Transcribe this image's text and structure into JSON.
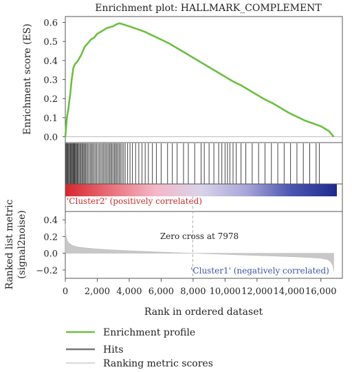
{
  "chart_data": {
    "type": "line",
    "title": "Enrichment plot: HALLMARK_COMPLEMENT",
    "xlabel": "Rank in ordered dataset",
    "xlim": [
      0,
      17000
    ],
    "x_ticks": [
      "0",
      "2,000",
      "4,000",
      "6,000",
      "8,000",
      "10,000",
      "12,000",
      "14,000",
      "16,000"
    ],
    "x_tick_values": [
      0,
      2000,
      4000,
      6000,
      8000,
      10000,
      12000,
      14000,
      16000
    ],
    "es_panel": {
      "ylabel": "Enrichment score (ES)",
      "ylim": [
        -0.02,
        0.62
      ],
      "y_ticks": [
        "0.0",
        "0.1",
        "0.2",
        "0.3",
        "0.4",
        "0.5",
        "0.6"
      ],
      "y_tick_values": [
        0,
        0.1,
        0.2,
        0.3,
        0.4,
        0.5,
        0.6
      ],
      "series": [
        {
          "name": "Enrichment profile",
          "color": "#6abf40",
          "x": [
            0,
            100,
            200,
            300,
            400,
            500,
            600,
            700,
            800,
            1000,
            1200,
            1400,
            1600,
            1800,
            2000,
            2200,
            2400,
            2600,
            2800,
            3000,
            3200,
            3400,
            3600,
            3800,
            4000,
            4500,
            5000,
            5500,
            6000,
            6500,
            7000,
            7500,
            8000,
            8500,
            9000,
            9500,
            10000,
            10500,
            11000,
            11500,
            12000,
            12500,
            13000,
            13500,
            14000,
            14500,
            15000,
            15500,
            16000,
            16500,
            16800
          ],
          "y": [
            0.0,
            0.1,
            0.15,
            0.22,
            0.3,
            0.36,
            0.38,
            0.39,
            0.4,
            0.43,
            0.47,
            0.49,
            0.51,
            0.52,
            0.54,
            0.55,
            0.56,
            0.57,
            0.575,
            0.58,
            0.59,
            0.595,
            0.59,
            0.585,
            0.58,
            0.565,
            0.55,
            0.53,
            0.51,
            0.49,
            0.465,
            0.44,
            0.415,
            0.39,
            0.365,
            0.34,
            0.315,
            0.29,
            0.27,
            0.245,
            0.22,
            0.195,
            0.175,
            0.15,
            0.125,
            0.105,
            0.085,
            0.07,
            0.055,
            0.03,
            0.0
          ]
        }
      ]
    },
    "hits": {
      "name": "Hits",
      "color": "#444444",
      "positions": [
        30,
        60,
        110,
        150,
        200,
        250,
        300,
        340,
        380,
        430,
        480,
        520,
        560,
        600,
        650,
        700,
        750,
        800,
        860,
        920,
        980,
        1040,
        1100,
        1160,
        1220,
        1280,
        1350,
        1420,
        1500,
        1580,
        1650,
        1720,
        1800,
        1880,
        1960,
        2050,
        2130,
        2220,
        2300,
        2380,
        2460,
        2540,
        2620,
        2700,
        2780,
        2850,
        2920,
        3000,
        3080,
        3150,
        3220,
        3300,
        3380,
        3460,
        3550,
        3650,
        3750,
        3900,
        4050,
        4200,
        4400,
        4600,
        4800,
        5000,
        5200,
        5450,
        5700,
        6000,
        6400,
        6700,
        7000,
        7400,
        7700,
        8100,
        8500,
        8700,
        9000,
        9300,
        9600,
        9800,
        10000,
        10150,
        10300,
        10500,
        10700,
        11000,
        11300,
        11700,
        12100,
        12500,
        12900,
        13300,
        13700,
        14100,
        14500,
        14900,
        15300,
        15700,
        15900
      ]
    },
    "ranking_bar": {
      "gradient": [
        "#d7262e",
        "#e8707a",
        "#f4b8c8",
        "#d9d3ea",
        "#a8a6d8",
        "#4a55b0",
        "#1f2a8e"
      ],
      "left_label": "'Cluster2' (positively correlated)",
      "left_label_color": "#cc2a2a",
      "right_label": "'Cluster1' (negatively correlated)",
      "right_label_color": "#3b55a8"
    },
    "metric_panel": {
      "ylabel": "Ranked list metric (signal2noise)",
      "ylabel_lines": [
        "Ranked list metric",
        "(signal2noise)"
      ],
      "ylim": [
        -0.3,
        0.5
      ],
      "y_ticks": [
        "0.4",
        "0.2",
        "0.0",
        "−0.2"
      ],
      "y_tick_values": [
        0.4,
        0.2,
        0.0,
        -0.2
      ],
      "zero_cross_label": "Zero cross at 7978",
      "zero_cross_x": 7978,
      "series": [
        {
          "name": "Ranking metric scores",
          "color": "#c8c8c8",
          "x": [
            0,
            50,
            150,
            300,
            500,
            800,
            1200,
            1800,
            2500,
            3500,
            5000,
            6500,
            7978,
            9500,
            11000,
            12500,
            14000,
            15200,
            16000,
            16400,
            16600,
            16750,
            16800
          ],
          "y": [
            0.35,
            0.2,
            0.14,
            0.11,
            0.09,
            0.075,
            0.065,
            0.055,
            0.045,
            0.035,
            0.022,
            0.01,
            0.0,
            -0.01,
            -0.02,
            -0.03,
            -0.04,
            -0.05,
            -0.06,
            -0.075,
            -0.1,
            -0.15,
            -0.22
          ]
        }
      ]
    },
    "legend": [
      {
        "label": "Enrichment profile",
        "color": "#6abf40"
      },
      {
        "label": "Hits",
        "color": "#777777"
      },
      {
        "label": "Ranking metric scores",
        "color": "#cccccc"
      }
    ]
  }
}
